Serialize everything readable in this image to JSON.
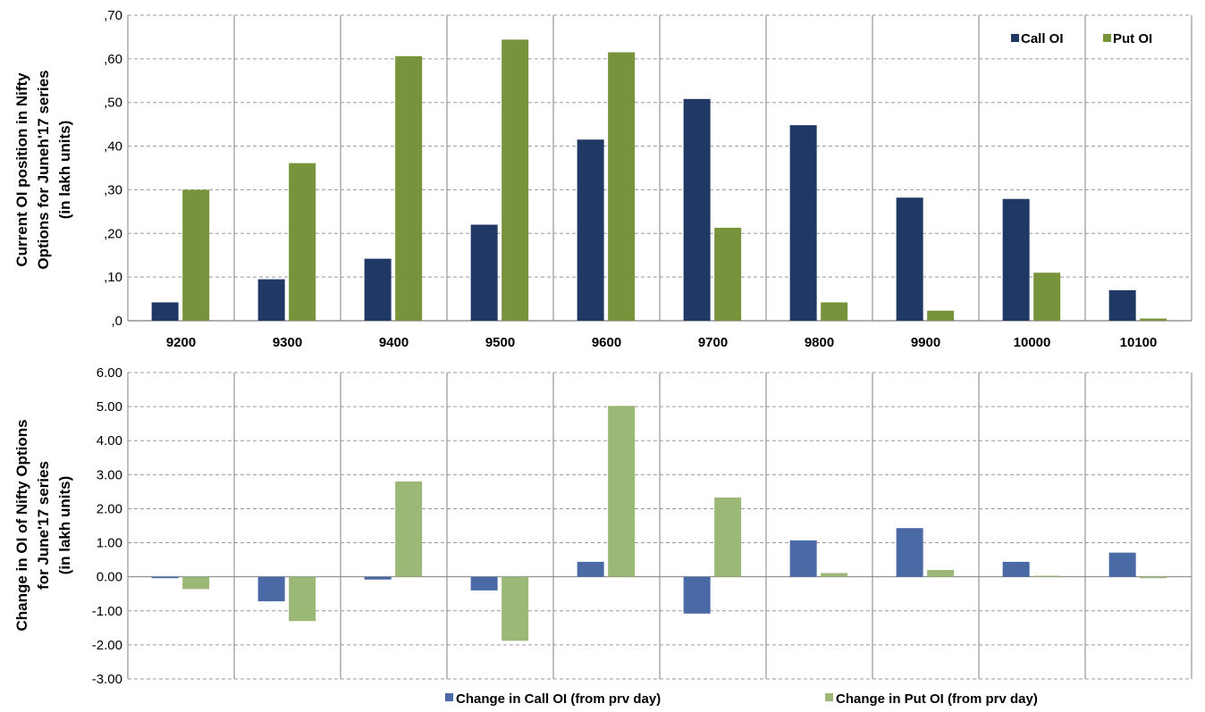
{
  "chart_data": [
    {
      "type": "bar",
      "ylabel_lines": [
        "Current OI position in Nifty",
        "Options for Juneh'17 series",
        "(in lakh units)"
      ],
      "categories": [
        "9200",
        "9300",
        "9400",
        "9500",
        "9600",
        "9700",
        "9800",
        "9900",
        "10000",
        "10100"
      ],
      "ylim": [
        0,
        0.7
      ],
      "yticks": [
        0,
        0.1,
        0.2,
        0.3,
        0.4,
        0.5,
        0.6,
        0.7
      ],
      "ytick_labels": [
        ",0",
        ",10",
        ",20",
        ",30",
        ",40",
        ",50",
        ",60",
        ",70"
      ],
      "grid": true,
      "legend_position": "top-right",
      "series": [
        {
          "name": "Call OI",
          "color": "#1f3864",
          "values": [
            0.042,
            0.095,
            0.142,
            0.22,
            0.415,
            0.508,
            0.448,
            0.282,
            0.279,
            0.07
          ]
        },
        {
          "name": "Put OI",
          "color": "#77933c",
          "values": [
            0.3,
            0.361,
            0.606,
            0.644,
            0.615,
            0.213,
            0.042,
            0.023,
            0.11,
            0.005
          ]
        }
      ]
    },
    {
      "type": "bar",
      "ylabel_lines": [
        "Change in OI of Nifty Options",
        "for June'17 series",
        "(in lakh units)"
      ],
      "categories": [
        "9200",
        "9300",
        "9400",
        "9500",
        "9600",
        "9700",
        "9800",
        "9900",
        "10000",
        "10100"
      ],
      "ylim": [
        -3,
        6
      ],
      "yticks": [
        -3,
        -2,
        -1,
        0,
        1,
        2,
        3,
        4,
        5,
        6
      ],
      "ytick_labels": [
        "-3.00",
        "-2.00",
        "-1.00",
        "0.00",
        "1.00",
        "2.00",
        "3.00",
        "4.00",
        "5.00",
        "6.00"
      ],
      "grid": true,
      "legend_position": "bottom",
      "series": [
        {
          "name": "Change in Call OI (from prv day)",
          "color": "#4a6aa6",
          "values": [
            -0.04,
            -0.72,
            -0.08,
            -0.4,
            0.44,
            -1.08,
            1.07,
            1.43,
            0.44,
            0.71
          ]
        },
        {
          "name": "Change in Put OI (from prv day)",
          "color": "#9bb877",
          "values": [
            -0.36,
            -1.3,
            2.8,
            -1.88,
            5.02,
            2.33,
            0.11,
            0.2,
            0.03,
            -0.04
          ]
        }
      ]
    }
  ]
}
